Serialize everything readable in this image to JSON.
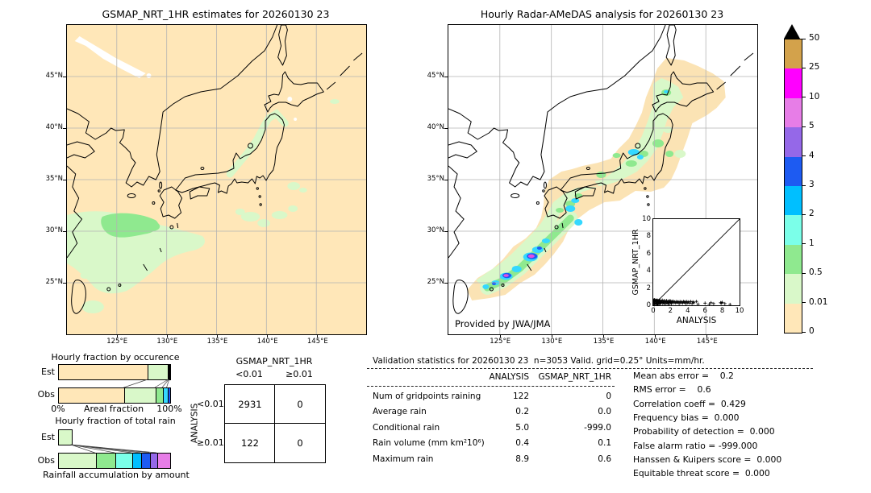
{
  "left_map": {
    "title": "GSMAP_NRT_1HR estimates for 20260130 23",
    "lat_ticks": [
      "45°N",
      "40°N",
      "35°N",
      "30°N",
      "25°N"
    ],
    "lon_ticks": [
      "125°E",
      "130°E",
      "135°E",
      "140°E",
      "145°E"
    ]
  },
  "right_map": {
    "title": "Hourly Radar-AMeDAS analysis for 20260130 23",
    "credit": "Provided by JWA/JMA",
    "lat_ticks": [
      "45°N",
      "40°N",
      "35°N",
      "30°N",
      "25°N"
    ],
    "lon_ticks": [
      "125°E",
      "130°E",
      "135°E",
      "140°E",
      "145°E"
    ]
  },
  "chart_data": {
    "colorbar": {
      "type": "heatmap",
      "units": "mm/hr",
      "levels_bottom_to_top": [
        "0",
        "0.01",
        "0.5",
        "1",
        "2",
        "3",
        "4",
        "5",
        "10",
        "25",
        "50"
      ],
      "colors_bottom_to_top": [
        "#FFE7B8",
        "#D9F8C9",
        "#8FE98F",
        "#7BFFE9",
        "#00BFFF",
        "#1D5BF2",
        "#9568E8",
        "#E77DE7",
        "#FF00FF",
        "#D3A24B"
      ],
      "over_color": "#000000"
    },
    "inset_scatter": {
      "type": "scatter",
      "xlabel": "ANALYSIS",
      "ylabel": "GSMAP_NRT_1HR",
      "xlim": [
        0,
        10
      ],
      "ylim": [
        0,
        10
      ],
      "xticks": [
        "0",
        "2",
        "4",
        "6",
        "8",
        "10"
      ],
      "yticks": [
        "0",
        "2",
        "4",
        "6",
        "8",
        "10"
      ],
      "diagonal": true,
      "points": [
        [
          0.05,
          0.3
        ],
        [
          0.05,
          0.6
        ],
        [
          0.08,
          0.15
        ],
        [
          0.1,
          0.5
        ],
        [
          0.12,
          0.65
        ],
        [
          0.15,
          0.2
        ],
        [
          0.18,
          0.4
        ],
        [
          0.2,
          0.6
        ],
        [
          0.22,
          0.55
        ],
        [
          0.25,
          0.15
        ],
        [
          0.28,
          0.25
        ],
        [
          0.3,
          0.45
        ],
        [
          0.33,
          0.6
        ],
        [
          0.35,
          0.3
        ],
        [
          0.38,
          0.15
        ],
        [
          0.4,
          0.55
        ],
        [
          0.42,
          0.45
        ],
        [
          0.45,
          0.1
        ],
        [
          0.48,
          0.6
        ],
        [
          0.5,
          0.35
        ],
        [
          0.52,
          0.15
        ],
        [
          0.55,
          0.5
        ],
        [
          0.58,
          0.55
        ],
        [
          0.6,
          0.2
        ],
        [
          0.62,
          0.3
        ],
        [
          0.65,
          0.4
        ],
        [
          0.68,
          0.5
        ],
        [
          0.7,
          0.6
        ],
        [
          0.72,
          0.15
        ],
        [
          0.75,
          0.25
        ],
        [
          0.78,
          0.55
        ],
        [
          0.8,
          0.45
        ],
        [
          0.85,
          0.2
        ],
        [
          0.9,
          0.3
        ],
        [
          0.95,
          0.4
        ],
        [
          1.0,
          0.5
        ],
        [
          1.05,
          0.6
        ],
        [
          1.1,
          0.2
        ],
        [
          1.15,
          0.35
        ],
        [
          1.2,
          0.4
        ],
        [
          1.25,
          0.55
        ],
        [
          1.3,
          0.3
        ],
        [
          1.35,
          0.15
        ],
        [
          1.4,
          0.5
        ],
        [
          1.45,
          0.4
        ],
        [
          1.5,
          0.25
        ],
        [
          1.55,
          0.55
        ],
        [
          1.6,
          0.4
        ],
        [
          1.65,
          0.3
        ],
        [
          1.7,
          0.2
        ],
        [
          1.75,
          0.5
        ],
        [
          1.8,
          0.35
        ],
        [
          1.85,
          0.15
        ],
        [
          1.9,
          0.45
        ],
        [
          1.95,
          0.55
        ],
        [
          2.0,
          0.3
        ],
        [
          2.05,
          0.45
        ],
        [
          2.1,
          0.2
        ],
        [
          2.15,
          0.3
        ],
        [
          2.2,
          0.4
        ],
        [
          2.3,
          0.5
        ],
        [
          2.4,
          0.3
        ],
        [
          2.5,
          0.4
        ],
        [
          2.6,
          0.25
        ],
        [
          2.7,
          0.45
        ],
        [
          2.8,
          0.35
        ],
        [
          2.9,
          0.4
        ],
        [
          3.0,
          0.2
        ],
        [
          3.1,
          0.45
        ],
        [
          3.2,
          0.3
        ],
        [
          3.3,
          0.4
        ],
        [
          3.4,
          0.25
        ],
        [
          3.5,
          0.45
        ],
        [
          3.6,
          0.35
        ],
        [
          3.7,
          0.4
        ],
        [
          3.8,
          0.2
        ],
        [
          3.9,
          0.45
        ],
        [
          4.0,
          0.3
        ],
        [
          4.1,
          0.4
        ],
        [
          4.2,
          0.25
        ],
        [
          4.35,
          0.45
        ],
        [
          4.5,
          0.2
        ],
        [
          4.6,
          0.4
        ],
        [
          4.7,
          0.3
        ],
        [
          5.0,
          0.45
        ],
        [
          5.2,
          0.15
        ],
        [
          6.0,
          0.25
        ],
        [
          6.5,
          0.15
        ],
        [
          6.7,
          0.3
        ],
        [
          7.0,
          0.2
        ],
        [
          7.8,
          0.3
        ],
        [
          7.9,
          0.25
        ],
        [
          8.0,
          0.35
        ],
        [
          8.3,
          0.2
        ],
        [
          8.9,
          0.1
        ]
      ]
    },
    "occurrence": {
      "type": "bar",
      "title": "Hourly fraction by occurence",
      "rows": [
        "Est",
        "Obs"
      ],
      "xlabel_left": "0%",
      "xlabel_center": "Areal fraction",
      "xlabel_right": "100%",
      "est_segments": [
        {
          "color": "#FFE7B8",
          "frac": 0.805
        },
        {
          "color": "#D9F8C9",
          "frac": 0.185
        },
        {
          "color": "#8FE98F",
          "frac": 0.004
        },
        {
          "color": "#35D8FF",
          "frac": 0.004
        },
        {
          "color": "#1D5BF2",
          "frac": 0.002
        }
      ],
      "obs_segments": [
        {
          "color": "#FFE7B8",
          "frac": 0.59
        },
        {
          "color": "#D9F8C9",
          "frac": 0.28
        },
        {
          "color": "#8FE98F",
          "frac": 0.065
        },
        {
          "color": "#35D8FF",
          "frac": 0.04
        },
        {
          "color": "#1D5BF2",
          "frac": 0.025
        }
      ]
    },
    "total_rain": {
      "type": "bar",
      "title": "Hourly fraction of total rain",
      "caption": "Rainfall accumulation by amount",
      "rows": [
        "Est",
        "Obs"
      ],
      "est_segments": [
        {
          "color": "#D9F8C9",
          "frac": 0.115
        },
        {
          "color": "#8FE98F",
          "frac": 0
        },
        {
          "color": "#7BFFE9",
          "frac": 0
        },
        {
          "color": "#00BFFF",
          "frac": 0
        },
        {
          "color": "#1D5BF2",
          "frac": 0
        },
        {
          "color": "#9568E8",
          "frac": 0
        },
        {
          "color": "#E77DE7",
          "frac": 0
        }
      ],
      "obs_segments": [
        {
          "color": "#D9F8C9",
          "frac": 0.33
        },
        {
          "color": "#8FE98F",
          "frac": 0.18
        },
        {
          "color": "#7BFFE9",
          "frac": 0.15
        },
        {
          "color": "#00BFFF",
          "frac": 0.08
        },
        {
          "color": "#1D5BF2",
          "frac": 0.08
        },
        {
          "color": "#9568E8",
          "frac": 0.065
        },
        {
          "color": "#E77DE7",
          "frac": 0.115
        }
      ]
    },
    "contingency": {
      "type": "table",
      "col_title": "GSMAP_NRT_1HR",
      "row_title": "ANALYSIS",
      "col_labels": [
        "<0.01",
        "≥0.01"
      ],
      "row_labels": [
        "<0.01",
        "≥0.01"
      ],
      "values": [
        [
          "2931",
          "0"
        ],
        [
          "122",
          "0"
        ]
      ]
    },
    "validation": {
      "type": "table",
      "title": "Validation statistics for 20260130 23  n=3053 Valid. grid=0.25° Units=mm/hr.",
      "columns": [
        "ANALYSIS",
        "GSMAP_NRT_1HR"
      ],
      "rows": [
        {
          "label": "Num of gridpoints raining",
          "analysis": "122",
          "gsmap": "0"
        },
        {
          "label": "Average rain",
          "analysis": "0.2",
          "gsmap": "0.0"
        },
        {
          "label": "Conditional rain",
          "analysis": "5.0",
          "gsmap": "-999.0"
        },
        {
          "label": "Rain volume (mm km²10⁶)",
          "analysis": "0.4",
          "gsmap": "0.1"
        },
        {
          "label": "Maximum rain",
          "analysis": "8.9",
          "gsmap": "0.6"
        }
      ]
    },
    "scores": {
      "type": "stats",
      "lines": [
        "Mean abs error =    0.2",
        "RMS error =    0.6",
        "Correlation coeff =  0.429",
        "Frequency bias =  0.000",
        "Probability of detection =  0.000",
        "False alarm ratio = -999.000",
        "Hanssen & Kuipers score =  0.000",
        "Equitable threat score =  0.000"
      ]
    }
  }
}
